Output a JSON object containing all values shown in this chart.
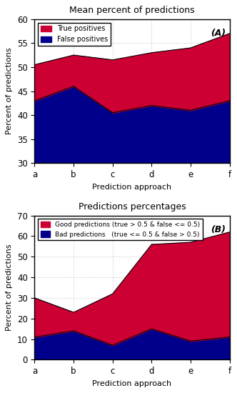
{
  "categories": [
    "a",
    "b",
    "c",
    "d",
    "e",
    "f"
  ],
  "chartA": {
    "title": "Mean percent of predictions",
    "ylabel": "Percent of predictions",
    "xlabel": "Prediction approach",
    "ylim": [
      30,
      60
    ],
    "yticks": [
      30,
      35,
      40,
      45,
      50,
      55,
      60
    ],
    "false_positives": [
      43.0,
      46.0,
      40.5,
      42.0,
      41.0,
      43.0
    ],
    "true_positives_total": [
      50.5,
      52.5,
      51.5,
      53.0,
      54.0,
      57.0
    ],
    "legend1": "True positives",
    "legend2": "False positives",
    "label": "(A)"
  },
  "chartB": {
    "title": "Predictions percentages",
    "ylabel": "Percent of predictions",
    "xlabel": "Prediction approach",
    "ylim": [
      0,
      70
    ],
    "yticks": [
      0,
      10,
      20,
      30,
      40,
      50,
      60,
      70
    ],
    "bad_predictions": [
      11.0,
      14.0,
      7.0,
      15.0,
      9.0,
      11.0
    ],
    "good_predictions_total": [
      30.0,
      23.0,
      32.0,
      56.0,
      57.0,
      62.0
    ],
    "legend1": "Good predictions (true > 0.5 & false <= 0.5)",
    "legend2": "Bad predictions   (true <= 0.5 & false > 0.5)",
    "label": "(B)"
  },
  "true_pos_color": "#CC0033",
  "false_pos_color": "#00008B",
  "good_pred_color": "#CC0033",
  "bad_pred_color": "#00008B",
  "bg_color": "#FFFFFF",
  "grid_color": "#AAAAAA",
  "spine_color": "#000000"
}
